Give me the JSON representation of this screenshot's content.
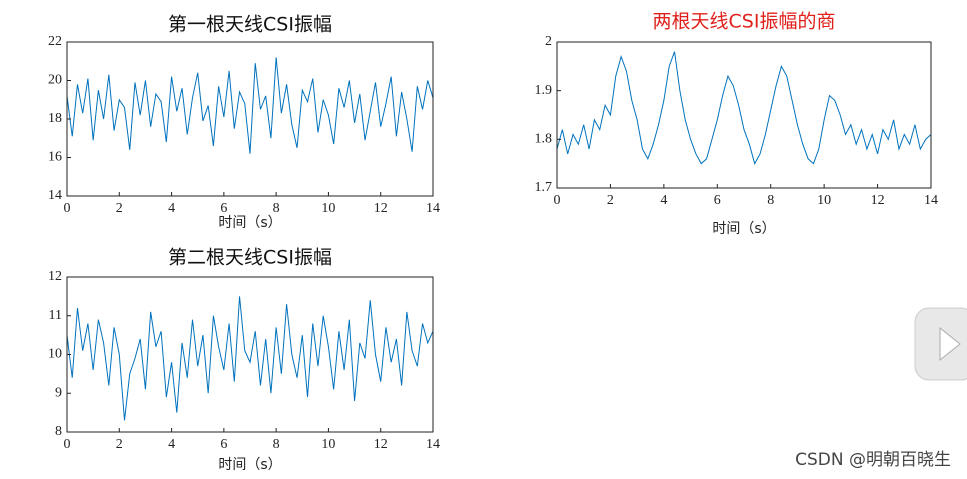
{
  "chart_data": [
    {
      "type": "line",
      "title": "第一根天线CSI振幅",
      "title_color": "#111111",
      "xlabel": "时间（s）",
      "x": [
        0,
        0.2,
        0.4,
        0.6,
        0.8,
        1,
        1.2,
        1.4,
        1.6,
        1.8,
        2,
        2.2,
        2.4,
        2.6,
        2.8,
        3,
        3.2,
        3.4,
        3.6,
        3.8,
        4,
        4.2,
        4.4,
        4.6,
        4.8,
        5,
        5.2,
        5.4,
        5.6,
        5.8,
        6,
        6.2,
        6.4,
        6.6,
        6.8,
        7,
        7.2,
        7.4,
        7.6,
        7.8,
        8,
        8.2,
        8.4,
        8.6,
        8.8,
        9,
        9.2,
        9.4,
        9.6,
        9.8,
        10,
        10.2,
        10.4,
        10.6,
        10.8,
        11,
        11.2,
        11.4,
        11.6,
        11.8,
        12,
        12.2,
        12.4,
        12.6,
        12.8,
        13,
        13.2,
        13.4,
        13.6,
        13.8,
        14
      ],
      "series": [
        {
          "color": "#0072bd",
          "values": [
            19.2,
            17.1,
            19.8,
            18.3,
            20.1,
            16.9,
            19.5,
            18.0,
            20.3,
            17.4,
            19.0,
            18.6,
            16.4,
            19.9,
            18.2,
            20.0,
            17.6,
            19.3,
            18.9,
            16.8,
            20.2,
            18.4,
            19.6,
            17.2,
            19.1,
            20.4,
            17.9,
            18.7,
            16.6,
            19.7,
            18.1,
            20.5,
            17.5,
            19.4,
            18.8,
            16.2,
            20.9,
            18.5,
            19.2,
            17.0,
            21.2,
            18.3,
            19.8,
            17.7,
            16.5,
            19.5,
            18.9,
            20.1,
            17.3,
            19.0,
            18.2,
            16.7,
            19.6,
            18.6,
            20.0,
            17.8,
            19.3,
            16.9,
            18.4,
            19.9,
            17.6,
            18.8,
            20.2,
            17.1,
            19.4,
            18.0,
            16.3,
            19.7,
            18.5,
            20.0,
            19.1
          ]
        }
      ],
      "xlim": [
        0,
        14
      ],
      "xticks": [
        0,
        2,
        4,
        6,
        8,
        10,
        12,
        14
      ],
      "ylim": [
        14,
        22
      ],
      "yticks": [
        14,
        16,
        18,
        20,
        22
      ]
    },
    {
      "type": "line",
      "title": "第二根天线CSI振幅",
      "title_color": "#111111",
      "xlabel": "时间（s）",
      "x": [
        0,
        0.2,
        0.4,
        0.6,
        0.8,
        1,
        1.2,
        1.4,
        1.6,
        1.8,
        2,
        2.2,
        2.4,
        2.6,
        2.8,
        3,
        3.2,
        3.4,
        3.6,
        3.8,
        4,
        4.2,
        4.4,
        4.6,
        4.8,
        5,
        5.2,
        5.4,
        5.6,
        5.8,
        6,
        6.2,
        6.4,
        6.6,
        6.8,
        7,
        7.2,
        7.4,
        7.6,
        7.8,
        8,
        8.2,
        8.4,
        8.6,
        8.8,
        9,
        9.2,
        9.4,
        9.6,
        9.8,
        10,
        10.2,
        10.4,
        10.6,
        10.8,
        11,
        11.2,
        11.4,
        11.6,
        11.8,
        12,
        12.2,
        12.4,
        12.6,
        12.8,
        13,
        13.2,
        13.4,
        13.6,
        13.8,
        14
      ],
      "series": [
        {
          "color": "#0072bd",
          "values": [
            10.5,
            9.4,
            11.2,
            10.1,
            10.8,
            9.6,
            10.9,
            10.3,
            9.2,
            10.7,
            10.0,
            8.3,
            9.5,
            9.9,
            10.4,
            9.1,
            11.1,
            10.2,
            10.6,
            8.9,
            9.8,
            8.5,
            10.3,
            9.4,
            10.9,
            9.7,
            10.5,
            9.0,
            11.0,
            10.2,
            9.6,
            10.8,
            9.3,
            11.5,
            10.1,
            9.8,
            10.6,
            9.2,
            10.4,
            9.0,
            10.7,
            9.5,
            11.3,
            10.0,
            9.4,
            10.5,
            8.9,
            10.8,
            9.7,
            11.0,
            10.2,
            9.1,
            10.6,
            9.6,
            10.9,
            8.8,
            10.3,
            9.9,
            11.4,
            10.0,
            9.3,
            10.7,
            9.8,
            10.4,
            9.2,
            11.1,
            10.1,
            9.7,
            10.8,
            10.3,
            10.6
          ]
        }
      ],
      "xlim": [
        0,
        14
      ],
      "xticks": [
        0,
        2,
        4,
        6,
        8,
        10,
        12,
        14
      ],
      "ylim": [
        8,
        12
      ],
      "yticks": [
        8,
        9,
        10,
        11,
        12
      ]
    },
    {
      "type": "line",
      "title": "两根天线CSI振幅的商",
      "title_color": "#e0201b",
      "xlabel": "时间（s）",
      "x": [
        0,
        0.2,
        0.4,
        0.6,
        0.8,
        1,
        1.2,
        1.4,
        1.6,
        1.8,
        2,
        2.2,
        2.4,
        2.6,
        2.8,
        3,
        3.2,
        3.4,
        3.6,
        3.8,
        4,
        4.2,
        4.4,
        4.6,
        4.8,
        5,
        5.2,
        5.4,
        5.6,
        5.8,
        6,
        6.2,
        6.4,
        6.6,
        6.8,
        7,
        7.2,
        7.4,
        7.6,
        7.8,
        8,
        8.2,
        8.4,
        8.6,
        8.8,
        9,
        9.2,
        9.4,
        9.6,
        9.8,
        10,
        10.2,
        10.4,
        10.6,
        10.8,
        11,
        11.2,
        11.4,
        11.6,
        11.8,
        12,
        12.2,
        12.4,
        12.6,
        12.8,
        13,
        13.2,
        13.4,
        13.6,
        13.8,
        14
      ],
      "series": [
        {
          "color": "#0072bd",
          "values": [
            1.78,
            1.82,
            1.77,
            1.81,
            1.79,
            1.83,
            1.78,
            1.84,
            1.82,
            1.87,
            1.85,
            1.93,
            1.97,
            1.94,
            1.88,
            1.84,
            1.78,
            1.76,
            1.79,
            1.83,
            1.88,
            1.95,
            1.98,
            1.9,
            1.84,
            1.8,
            1.77,
            1.75,
            1.76,
            1.8,
            1.84,
            1.89,
            1.93,
            1.91,
            1.87,
            1.82,
            1.79,
            1.75,
            1.77,
            1.81,
            1.86,
            1.91,
            1.95,
            1.93,
            1.88,
            1.83,
            1.79,
            1.76,
            1.75,
            1.78,
            1.84,
            1.89,
            1.88,
            1.85,
            1.81,
            1.83,
            1.79,
            1.82,
            1.78,
            1.81,
            1.77,
            1.82,
            1.8,
            1.84,
            1.78,
            1.81,
            1.79,
            1.83,
            1.78,
            1.8,
            1.81
          ]
        }
      ],
      "xlim": [
        0,
        14
      ],
      "xticks": [
        0,
        2,
        4,
        6,
        8,
        10,
        12,
        14
      ],
      "ylim": [
        1.7,
        2.0
      ],
      "yticks": [
        1.7,
        1.8,
        1.9,
        2
      ]
    }
  ],
  "watermark": "CSDN @明朝百晓生"
}
